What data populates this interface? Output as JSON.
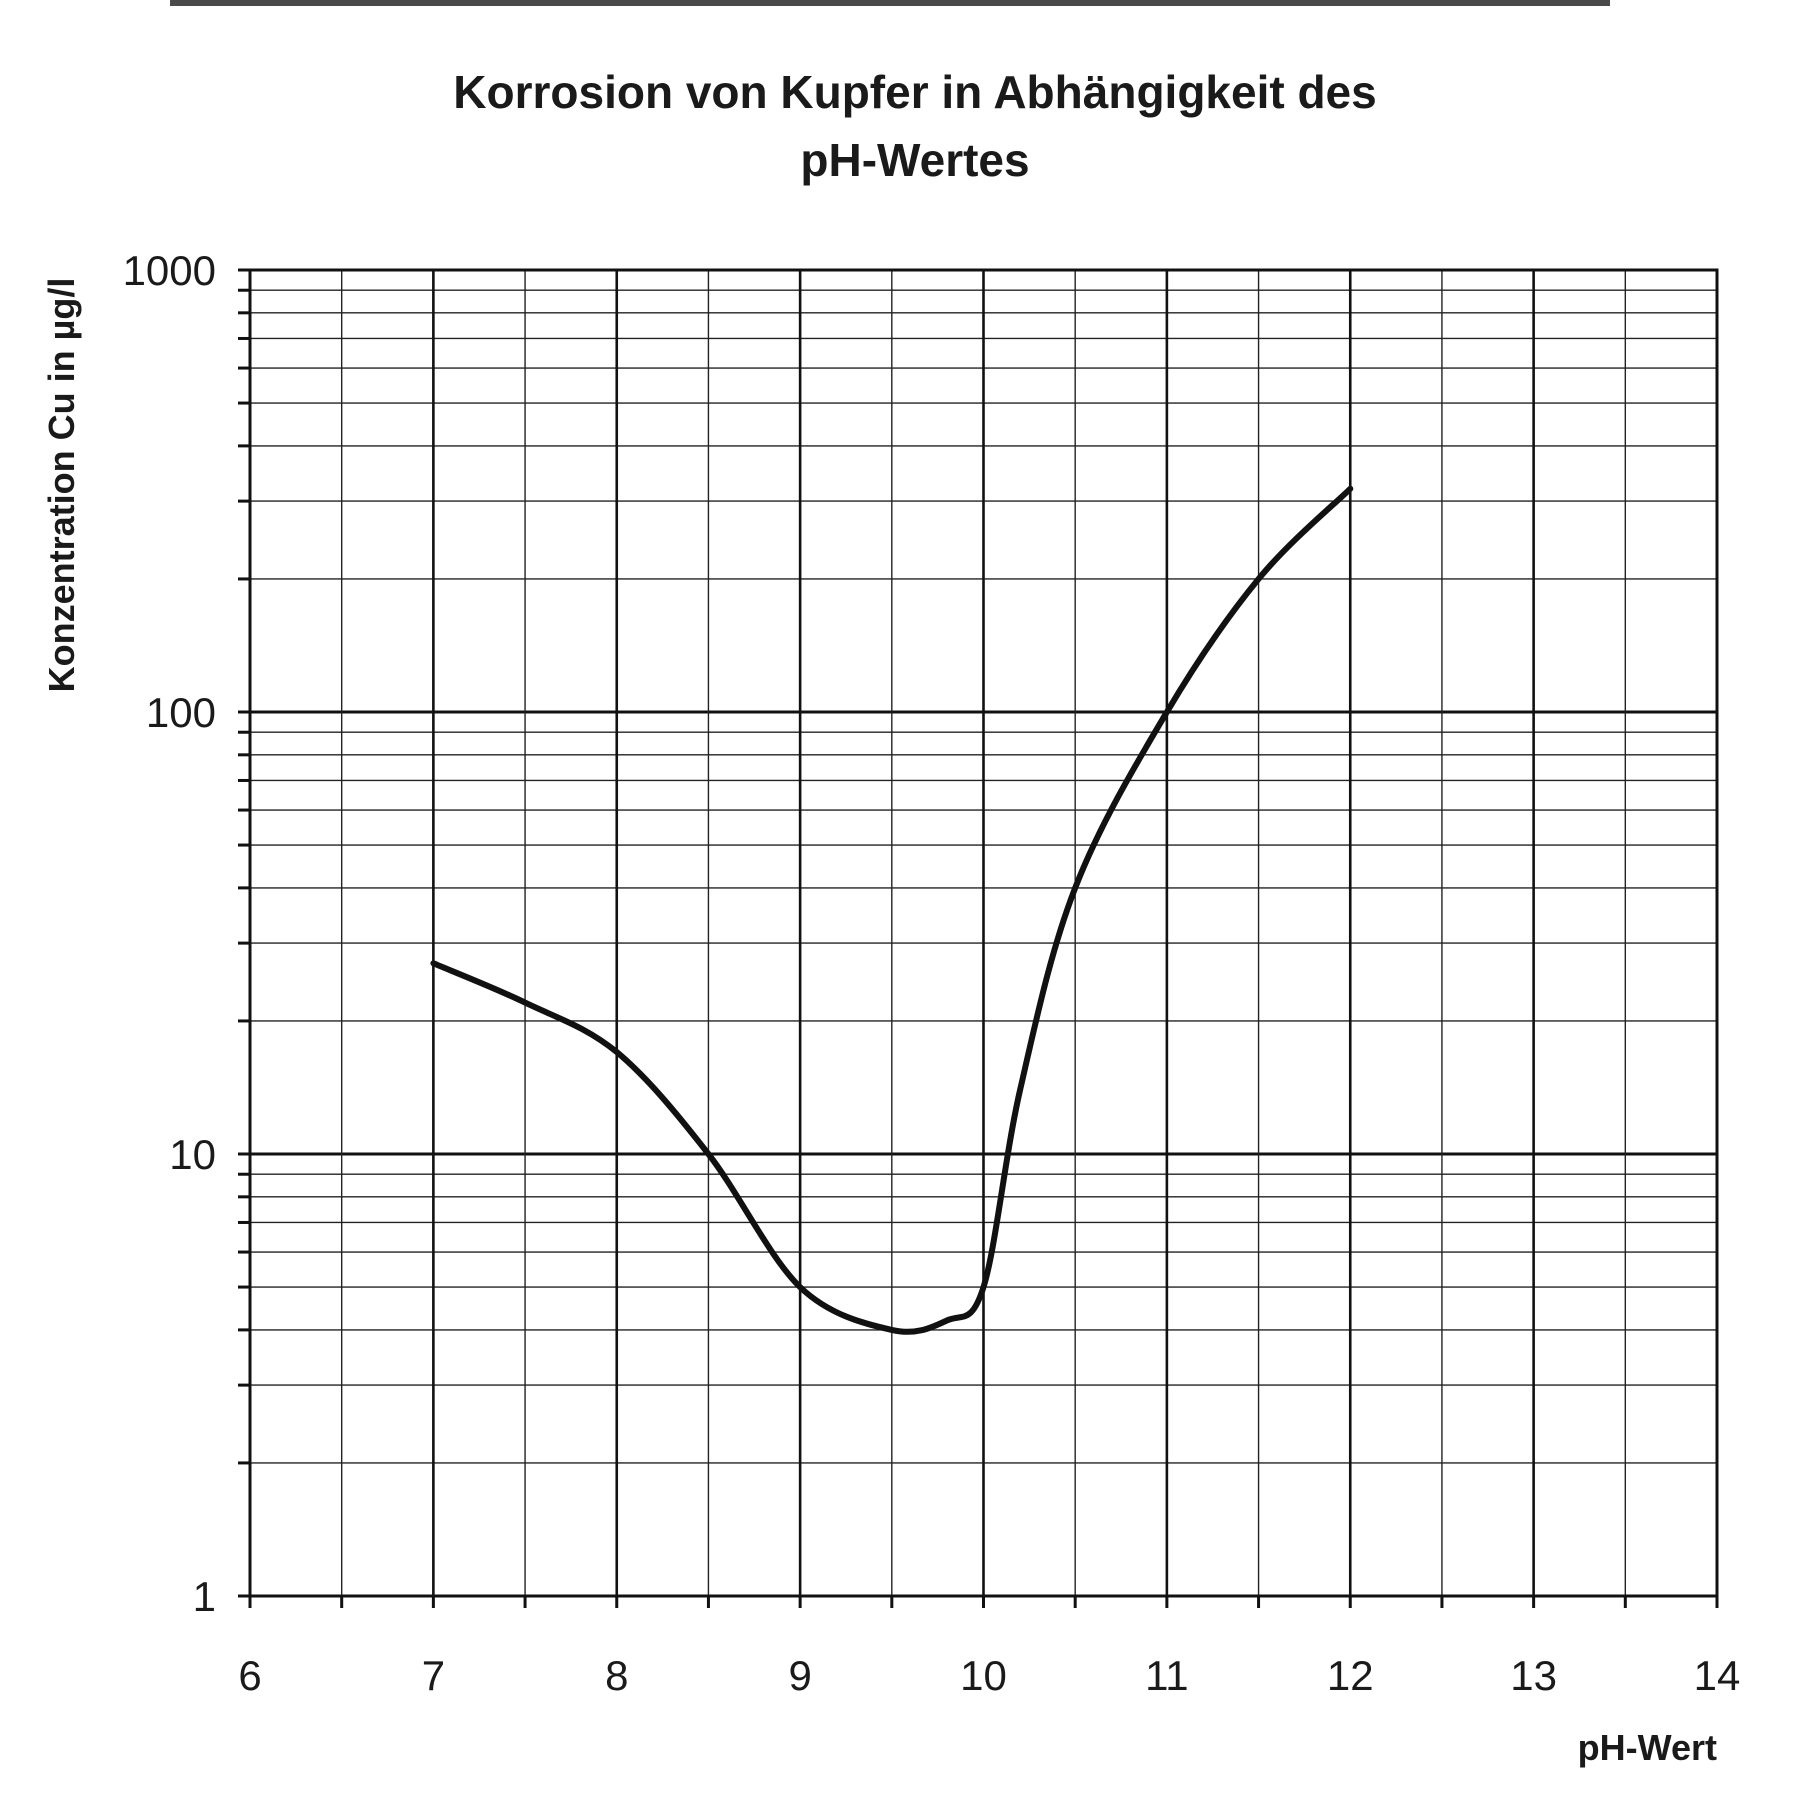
{
  "chart_data": {
    "type": "line",
    "title": [
      "Korrosion von Kupfer in Abhängigkeit des",
      "pH-Wertes"
    ],
    "xlabel": "pH-Wert",
    "ylabel": "Konzentration Cu in µg/l",
    "xlim": [
      6,
      14
    ],
    "ylim": [
      1,
      1000
    ],
    "yscale": "log",
    "grid": true,
    "x_ticks": [
      "6",
      "7",
      "8",
      "9",
      "10",
      "11",
      "12",
      "13",
      "14"
    ],
    "y_ticks": [
      "1",
      "10",
      "100",
      "1000"
    ],
    "x_tick_values": [
      6,
      7,
      8,
      9,
      10,
      11,
      12,
      13,
      14
    ],
    "y_tick_values": [
      1,
      10,
      100,
      1000
    ],
    "series": [
      {
        "x": [
          7.0,
          7.5,
          8.0,
          8.5,
          9.0,
          9.5,
          9.8,
          10.0,
          10.2,
          10.5,
          11.0,
          11.5,
          12.0
        ],
        "y": [
          27,
          22,
          17,
          10,
          5,
          4,
          4.2,
          5,
          14,
          40,
          100,
          200,
          320
        ]
      }
    ]
  }
}
